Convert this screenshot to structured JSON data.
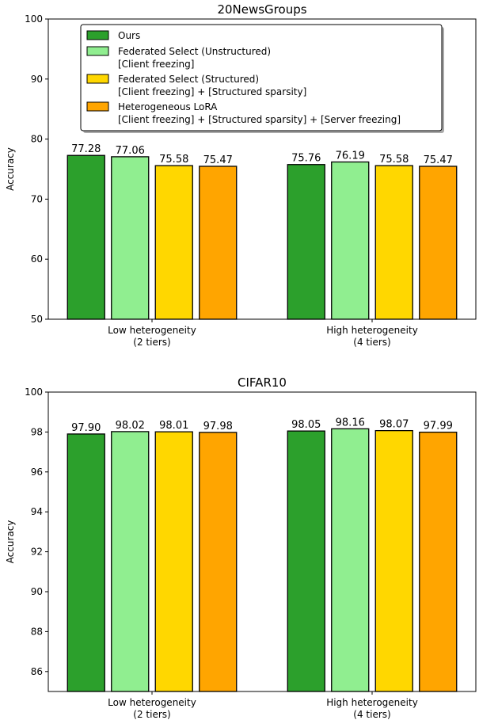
{
  "chart_data": [
    {
      "type": "bar",
      "title": "20NewsGroups",
      "ylabel": "Accuracy",
      "xlabel": "",
      "categories": [
        [
          "Low heterogeneity",
          "(2 tiers)"
        ],
        [
          "High heterogeneity",
          "(4 tiers)"
        ]
      ],
      "ylim": [
        50,
        100
      ],
      "yticks": [
        50,
        60,
        70,
        80,
        90,
        100
      ],
      "legend_position": "top-left",
      "series": [
        {
          "name": [
            "Ours"
          ],
          "color": "#2ca02c",
          "values": [
            77.28,
            75.76
          ],
          "labels": [
            "77.28",
            "75.76"
          ]
        },
        {
          "name": [
            "Federated Select (Unstructured)",
            "[Client freezing]"
          ],
          "color": "#90ee90",
          "values": [
            77.06,
            76.19
          ],
          "labels": [
            "77.06",
            "76.19"
          ]
        },
        {
          "name": [
            "Federated Select (Structured)",
            "[Client freezing] + [Structured sparsity]"
          ],
          "color": "#ffd700",
          "values": [
            75.58,
            75.58
          ],
          "labels": [
            "75.58",
            "75.58"
          ]
        },
        {
          "name": [
            "Heterogeneous LoRA",
            "[Client freezing] + [Structured sparsity] + [Server freezing]"
          ],
          "color": "#ffa500",
          "values": [
            75.47,
            75.47
          ],
          "labels": [
            "75.47",
            "75.47"
          ]
        }
      ]
    },
    {
      "type": "bar",
      "title": "CIFAR10",
      "ylabel": "Accuracy",
      "xlabel": "",
      "categories": [
        [
          "Low heterogeneity",
          "(2 tiers)"
        ],
        [
          "High heterogeneity",
          "(4 tiers)"
        ]
      ],
      "ylim": [
        85,
        100
      ],
      "yticks": [
        86,
        88,
        90,
        92,
        94,
        96,
        98,
        100
      ],
      "series": [
        {
          "name": [
            "Ours"
          ],
          "color": "#2ca02c",
          "values": [
            97.9,
            98.05
          ],
          "labels": [
            "97.90",
            "98.05"
          ]
        },
        {
          "name": [
            "Federated Select (Unstructured)",
            "[Client freezing]"
          ],
          "color": "#90ee90",
          "values": [
            98.02,
            98.16
          ],
          "labels": [
            "98.02",
            "98.16"
          ]
        },
        {
          "name": [
            "Federated Select (Structured)",
            "[Client freezing] + [Structured sparsity]"
          ],
          "color": "#ffd700",
          "values": [
            98.01,
            98.07
          ],
          "labels": [
            "98.01",
            "98.07"
          ]
        },
        {
          "name": [
            "Heterogeneous LoRA",
            "[Client freezing] + [Structured sparsity] + [Server freezing]"
          ],
          "color": "#ffa500",
          "values": [
            97.98,
            97.99
          ],
          "labels": [
            "97.98",
            "97.99"
          ]
        }
      ]
    }
  ]
}
